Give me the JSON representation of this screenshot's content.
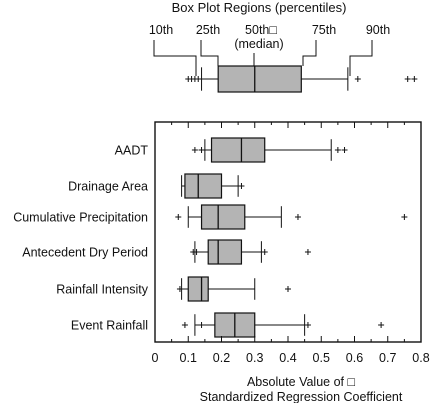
{
  "legend": {
    "title": "Box Plot Regions (percentiles)",
    "labels": [
      "10th",
      "25th",
      "50th□",
      "(median)",
      "75th",
      "90th"
    ],
    "example_box": {
      "whisker_low": 0.14,
      "q1": 0.19,
      "median": 0.3,
      "q3": 0.44,
      "whisker_high": 0.58,
      "outliers": [
        0.1,
        0.11,
        0.12,
        0.13,
        0.61,
        0.76,
        0.78
      ]
    }
  },
  "chart_data": {
    "type": "boxplot",
    "orientation": "horizontal",
    "xlabel": "Absolute Value of □ Standardized Regression Coefficient",
    "xlabel_lines": [
      "Absolute Value of □",
      "Standardized Regression Coefficient"
    ],
    "xlim": [
      0,
      0.8
    ],
    "xticks": [
      0,
      0.1,
      0.2,
      0.3,
      0.4,
      0.5,
      0.6,
      0.7,
      0.8
    ],
    "xtick_labels": [
      "0",
      "0.1",
      "0.2",
      "0.3",
      "0.4",
      "0.5",
      "0.6",
      "0.7",
      "0.8"
    ],
    "grid": false,
    "categories": [
      "AADT",
      "Drainage Area",
      "Cumulative Precipitation",
      "Antecedent Dry Period",
      "Rainfall Intensity",
      "Event Rainfall"
    ],
    "boxes": [
      {
        "name": "AADT",
        "whisker_low": 0.15,
        "q1": 0.17,
        "median": 0.26,
        "q3": 0.33,
        "whisker_high": 0.53,
        "outliers": [
          0.12,
          0.14,
          0.55,
          0.57
        ]
      },
      {
        "name": "Drainage Area",
        "whisker_low": 0.08,
        "q1": 0.09,
        "median": 0.13,
        "q3": 0.2,
        "whisker_high": 0.25,
        "outliers": [
          0.26
        ]
      },
      {
        "name": "Cumulative Precipitation",
        "whisker_low": 0.1,
        "q1": 0.14,
        "median": 0.19,
        "q3": 0.27,
        "whisker_high": 0.38,
        "outliers": [
          0.07,
          0.43,
          0.75
        ]
      },
      {
        "name": "Antecedent Dry Period",
        "whisker_low": 0.12,
        "q1": 0.16,
        "median": 0.19,
        "q3": 0.26,
        "whisker_high": 0.32,
        "outliers": [
          0.115,
          0.125,
          0.33,
          0.46
        ]
      },
      {
        "name": "Rainfall Intensity",
        "whisker_low": 0.08,
        "q1": 0.1,
        "median": 0.14,
        "q3": 0.16,
        "whisker_high": 0.3,
        "outliers": [
          0.075,
          0.4
        ]
      },
      {
        "name": "Event Rainfall",
        "whisker_low": 0.12,
        "q1": 0.18,
        "median": 0.24,
        "q3": 0.3,
        "whisker_high": 0.45,
        "outliers": [
          0.09,
          0.14,
          0.46,
          0.68
        ]
      }
    ],
    "box_fill": "#b4b4b4",
    "line_color": "#111111"
  }
}
